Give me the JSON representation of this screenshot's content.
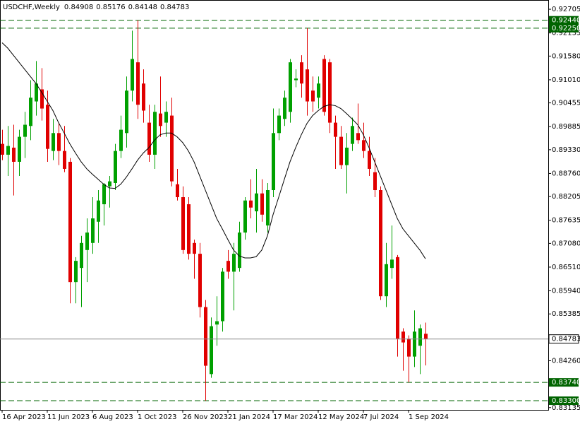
{
  "chart_data": {
    "type": "candlestick",
    "title": "USDCHF,Weekly",
    "up_color": "#00a000",
    "down_color": "#e00000",
    "categories": [
      "16 Apr 2023",
      null,
      null,
      null,
      null,
      null,
      null,
      null,
      "11 Jun 2023",
      null,
      null,
      null,
      null,
      null,
      null,
      null,
      "6 Aug 2023",
      null,
      null,
      null,
      null,
      null,
      null,
      null,
      "1 Oct 2023",
      null,
      null,
      null,
      null,
      null,
      null,
      null,
      "26 Nov 2023",
      null,
      null,
      null,
      null,
      null,
      null,
      null,
      "21 Jan 2024",
      null,
      null,
      null,
      null,
      null,
      null,
      null,
      "17 Mar 2024",
      null,
      null,
      null,
      null,
      null,
      null,
      null,
      "12 May 2024",
      null,
      null,
      null,
      null,
      null,
      null,
      null,
      "7 Jul 2024",
      null,
      null,
      null,
      null,
      null,
      null,
      null,
      "1 Sep 2024",
      null,
      null,
      null
    ],
    "open": [
      0.8947,
      0.8921,
      0.8938,
      0.8904,
      0.8964,
      0.899,
      0.9049,
      0.9078,
      0.9041,
      0.893,
      0.8973,
      0.893,
      0.8904,
      0.8615,
      0.8649,
      0.8692,
      0.8709,
      0.876,
      0.8802,
      0.8845,
      0.8853,
      0.893,
      0.8973,
      0.9075,
      0.9143,
      0.9092,
      0.8998,
      0.8921,
      0.902,
      0.8998,
      0.9015,
      0.885,
      0.8819,
      0.8802,
      0.8709,
      0.8683,
      0.8555,
      0.8394,
      0.8513,
      0.8521,
      0.8666,
      0.864,
      0.8649,
      0.8734,
      0.8811,
      0.8785,
      0.8828,
      0.8751,
      0.8836,
      0.8973,
      0.9007,
      0.9024,
      0.91,
      0.9143,
      0.9126,
      0.9075,
      0.9058,
      0.9151,
      0.9143,
      0.8998,
      0.8964,
      0.8896,
      0.8947,
      0.8973,
      0.8956,
      0.893,
      0.8879,
      0.8836,
      0.8581,
      0.8649,
      0.8675,
      0.8496,
      0.8479,
      0.8436,
      0.8462,
      0.84908
    ],
    "high": [
      0.8981,
      0.899,
      0.8993,
      0.8981,
      0.9024,
      0.91,
      0.9146,
      0.9129,
      0.9075,
      0.9007,
      0.8998,
      0.899,
      0.8913,
      0.8675,
      0.8726,
      0.8768,
      0.8819,
      0.8836,
      0.8853,
      0.887,
      0.8947,
      0.9015,
      0.9109,
      0.9219,
      0.9244,
      0.9126,
      0.9041,
      0.9041,
      0.9109,
      0.9049,
      0.9058,
      0.8887,
      0.8845,
      0.8819,
      0.8717,
      0.8709,
      0.8572,
      0.853,
      0.8581,
      0.8649,
      0.8692,
      0.8709,
      0.876,
      0.8819,
      0.8862,
      0.8887,
      0.8862,
      0.8853,
      0.9032,
      0.9032,
      0.9075,
      0.9151,
      0.9126,
      0.916,
      0.9225,
      0.9109,
      0.9109,
      0.916,
      0.9151,
      0.9015,
      0.899,
      0.8973,
      0.901,
      0.9044,
      0.8998,
      0.8964,
      0.8913,
      0.8845,
      0.8709,
      0.8751,
      0.868,
      0.8504,
      0.8487,
      0.8547,
      0.8513,
      0.85176
    ],
    "low": [
      0.8908,
      0.887,
      0.8823,
      0.887,
      0.8913,
      0.8956,
      0.9015,
      0.9003,
      0.8904,
      0.8908,
      0.8896,
      0.8879,
      0.8564,
      0.8564,
      0.8555,
      0.8615,
      0.8683,
      0.8709,
      0.8751,
      0.8794,
      0.8836,
      0.8913,
      0.8938,
      0.9049,
      0.9007,
      0.8998,
      0.8904,
      0.8887,
      0.8964,
      0.8964,
      0.8845,
      0.8811,
      0.8683,
      0.8669,
      0.8623,
      0.853,
      0.833,
      0.8385,
      0.8462,
      0.8496,
      0.8623,
      0.8547,
      0.864,
      0.8717,
      0.8768,
      0.8734,
      0.876,
      0.8734,
      0.8819,
      0.8956,
      0.899,
      0.8998,
      0.9083,
      0.9058,
      0.9015,
      0.9024,
      0.9032,
      0.9015,
      0.8973,
      0.8887,
      0.8887,
      0.8828,
      0.893,
      0.8947,
      0.8913,
      0.887,
      0.8819,
      0.8572,
      0.8555,
      0.8623,
      0.8436,
      0.8402,
      0.8374,
      0.8411,
      0.8394,
      0.84148
    ],
    "close": [
      0.8921,
      0.8942,
      0.8904,
      0.8964,
      0.8993,
      0.9058,
      0.9092,
      0.9032,
      0.8935,
      0.8973,
      0.893,
      0.8887,
      0.8615,
      0.8666,
      0.8709,
      0.8734,
      0.8768,
      0.8811,
      0.885,
      0.8857,
      0.893,
      0.8981,
      0.9075,
      0.9151,
      0.9041,
      0.9027,
      0.8921,
      0.9024,
      0.899,
      0.9024,
      0.8857,
      0.8819,
      0.8692,
      0.8683,
      0.8683,
      0.8555,
      0.8414,
      0.8509,
      0.8521,
      0.864,
      0.864,
      0.8683,
      0.8734,
      0.8811,
      0.8794,
      0.8828,
      0.8777,
      0.8836,
      0.8973,
      0.9015,
      0.9058,
      0.9143,
      0.9104,
      0.9092,
      0.9049,
      0.9049,
      0.9092,
      0.9024,
      0.8998,
      0.8964,
      0.8896,
      0.8938,
      0.899,
      0.8956,
      0.893,
      0.8887,
      0.8836,
      0.8581,
      0.8658,
      0.8669,
      0.8479,
      0.847,
      0.8436,
      0.8496,
      0.8504,
      0.84783
    ],
    "ma": {
      "color": "#000000",
      "values": [
        0.919,
        0.9177,
        0.916,
        0.9143,
        0.9126,
        0.9109,
        0.9092,
        0.9071,
        0.9049,
        0.9027,
        0.8998,
        0.8973,
        0.8947,
        0.8925,
        0.8904,
        0.8887,
        0.8874,
        0.8862,
        0.885,
        0.8841,
        0.884,
        0.885,
        0.8867,
        0.8887,
        0.8908,
        0.8925,
        0.8938,
        0.8956,
        0.8969,
        0.8973,
        0.8973,
        0.8964,
        0.895,
        0.893,
        0.8904,
        0.887,
        0.8836,
        0.8802,
        0.8768,
        0.8743,
        0.8717,
        0.8692,
        0.8678,
        0.8673,
        0.8673,
        0.8676,
        0.8692,
        0.8726,
        0.8777,
        0.8819,
        0.8862,
        0.8904,
        0.8938,
        0.8969,
        0.8996,
        0.9015,
        0.9027,
        0.9037,
        0.9041,
        0.9039,
        0.9032,
        0.902,
        0.9007,
        0.8993,
        0.8969,
        0.8938,
        0.8904,
        0.887,
        0.8836,
        0.8802,
        0.8768,
        0.8743,
        0.8726,
        0.8709,
        0.8692,
        0.8671
      ]
    },
    "levels": [
      {
        "value": 0.9244,
        "label": "0.92440"
      },
      {
        "value": 0.9225,
        "label": "0.92250"
      },
      {
        "value": 0.8374,
        "label": "0.83740"
      },
      {
        "value": 0.833,
        "label": "0.83300"
      }
    ],
    "level_color": "#006400",
    "ylim": [
      0.8308,
      0.9291
    ],
    "yticks": [
      0.92705,
      0.92135,
      {
        "value": 0.9158,
        "label": "0.91580"
      },
      {
        "value": 0.9101,
        "label": "0.91010"
      },
      0.90455,
      0.89885,
      {
        "value": 0.8933,
        "label": "0.89330"
      },
      {
        "value": 0.8876,
        "label": "0.88760"
      },
      0.88205,
      0.87635,
      {
        "value": 0.8708,
        "label": "0.87080"
      },
      {
        "value": 0.8651,
        "label": "0.86510"
      },
      {
        "value": 0.8594,
        "label": "0.85940"
      },
      0.85385,
      {
        "value": 0.8426,
        "label": "0.84260"
      },
      0.83135
    ]
  }
}
